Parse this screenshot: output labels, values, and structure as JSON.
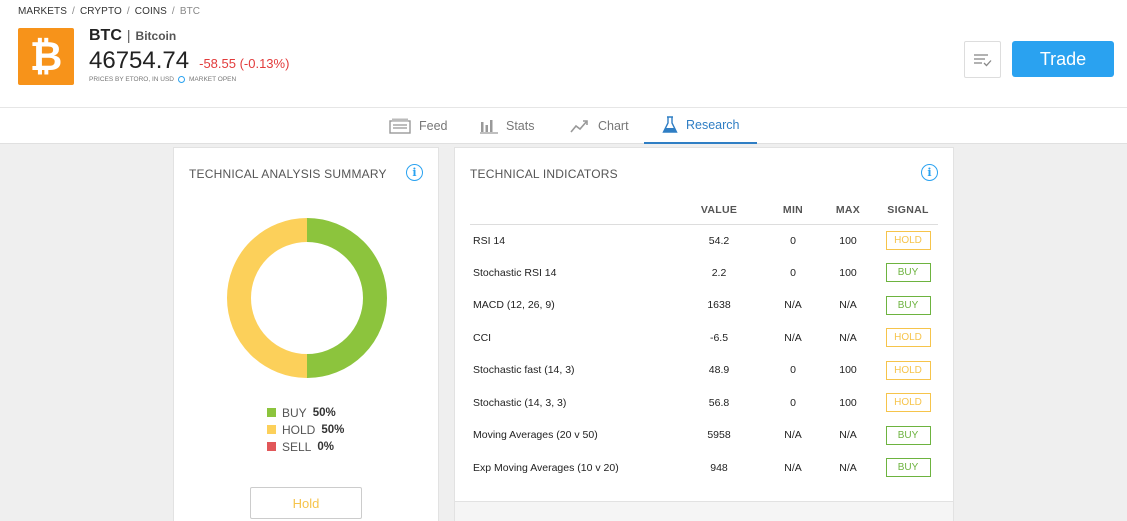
{
  "breadcrumb": [
    "MARKETS",
    "CRYPTO",
    "COINS",
    "BTC"
  ],
  "instrument": {
    "logo_glyph": "₿",
    "ticker": "BTC",
    "separator": "|",
    "name": "Bitcoin",
    "price": "46754.74",
    "change": "-58.55 (-0.13%)",
    "price_source": "PRICES BY ETORO, IN USD",
    "market_status": "MARKET OPEN"
  },
  "actions": {
    "watchlist_icon": "watchlist-icon",
    "trade_label": "Trade"
  },
  "tabs": [
    {
      "label": "Feed",
      "icon": "feed-icon",
      "active": false
    },
    {
      "label": "Stats",
      "icon": "stats-icon",
      "active": false
    },
    {
      "label": "Chart",
      "icon": "chart-icon",
      "active": false
    },
    {
      "label": "Research",
      "icon": "flask-icon",
      "active": true
    }
  ],
  "summary": {
    "title": "TECHNICAL ANALYSIS SUMMARY",
    "info_glyph": "i",
    "legend": [
      {
        "label": "BUY",
        "value": "50%",
        "color": "#8cc43d"
      },
      {
        "label": "HOLD",
        "value": "50%",
        "color": "#fcd05a"
      },
      {
        "label": "SELL",
        "value": "0%",
        "color": "#e15759"
      }
    ],
    "overall_signal": "Hold"
  },
  "chart_data": {
    "type": "pie",
    "categories": [
      "BUY",
      "HOLD",
      "SELL"
    ],
    "values": [
      50,
      50,
      0
    ],
    "colors": [
      "#8cc43d",
      "#fcd05a",
      "#e15759"
    ],
    "title": "",
    "donut": true
  },
  "indicators": {
    "title": "TECHNICAL INDICATORS",
    "info_glyph": "i",
    "columns": [
      "",
      "VALUE",
      "MIN",
      "MAX",
      "SIGNAL"
    ],
    "rows": [
      {
        "name": "RSI 14",
        "value": "54.2",
        "min": "0",
        "max": "100",
        "signal": "HOLD"
      },
      {
        "name": "Stochastic RSI 14",
        "value": "2.2",
        "min": "0",
        "max": "100",
        "signal": "BUY"
      },
      {
        "name": "MACD (12, 26, 9)",
        "value": "1638",
        "min": "N/A",
        "max": "N/A",
        "signal": "BUY"
      },
      {
        "name": "CCI",
        "value": "-6.5",
        "min": "N/A",
        "max": "N/A",
        "signal": "HOLD"
      },
      {
        "name": "Stochastic fast (14, 3)",
        "value": "48.9",
        "min": "0",
        "max": "100",
        "signal": "HOLD"
      },
      {
        "name": "Stochastic (14, 3, 3)",
        "value": "56.8",
        "min": "0",
        "max": "100",
        "signal": "HOLD"
      },
      {
        "name": "Moving Averages (20 v 50)",
        "value": "5958",
        "min": "N/A",
        "max": "N/A",
        "signal": "BUY"
      },
      {
        "name": "Exp Moving Averages (10 v 20)",
        "value": "948",
        "min": "N/A",
        "max": "N/A",
        "signal": "BUY"
      }
    ]
  }
}
